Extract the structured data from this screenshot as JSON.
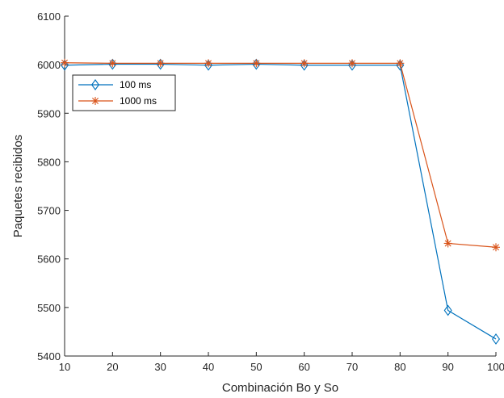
{
  "chart_data": {
    "type": "line",
    "title": "",
    "xlabel": "Combinación Bo y So",
    "ylabel": "Paquetes recibidos",
    "x": [
      10,
      20,
      30,
      40,
      50,
      60,
      70,
      80,
      90,
      100
    ],
    "xlim": [
      10,
      100
    ],
    "ylim": [
      5400,
      6100
    ],
    "xticks": [
      10,
      20,
      30,
      40,
      50,
      60,
      70,
      80,
      90,
      100
    ],
    "yticks": [
      5400,
      5500,
      5600,
      5700,
      5800,
      5900,
      6000,
      6100
    ],
    "grid": false,
    "legend_position": "top-left",
    "series": [
      {
        "name": "100 ms",
        "marker": "diamond",
        "color": "#0072BD",
        "values": [
          5999,
          6001,
          6001,
          5999,
          6001,
          5999,
          5999,
          5999,
          5494,
          5435
        ]
      },
      {
        "name": "1000 ms",
        "marker": "asterisk",
        "color": "#D95319",
        "values": [
          6004,
          6003,
          6003,
          6003,
          6003,
          6003,
          6003,
          6003,
          5632,
          5624
        ]
      }
    ]
  }
}
